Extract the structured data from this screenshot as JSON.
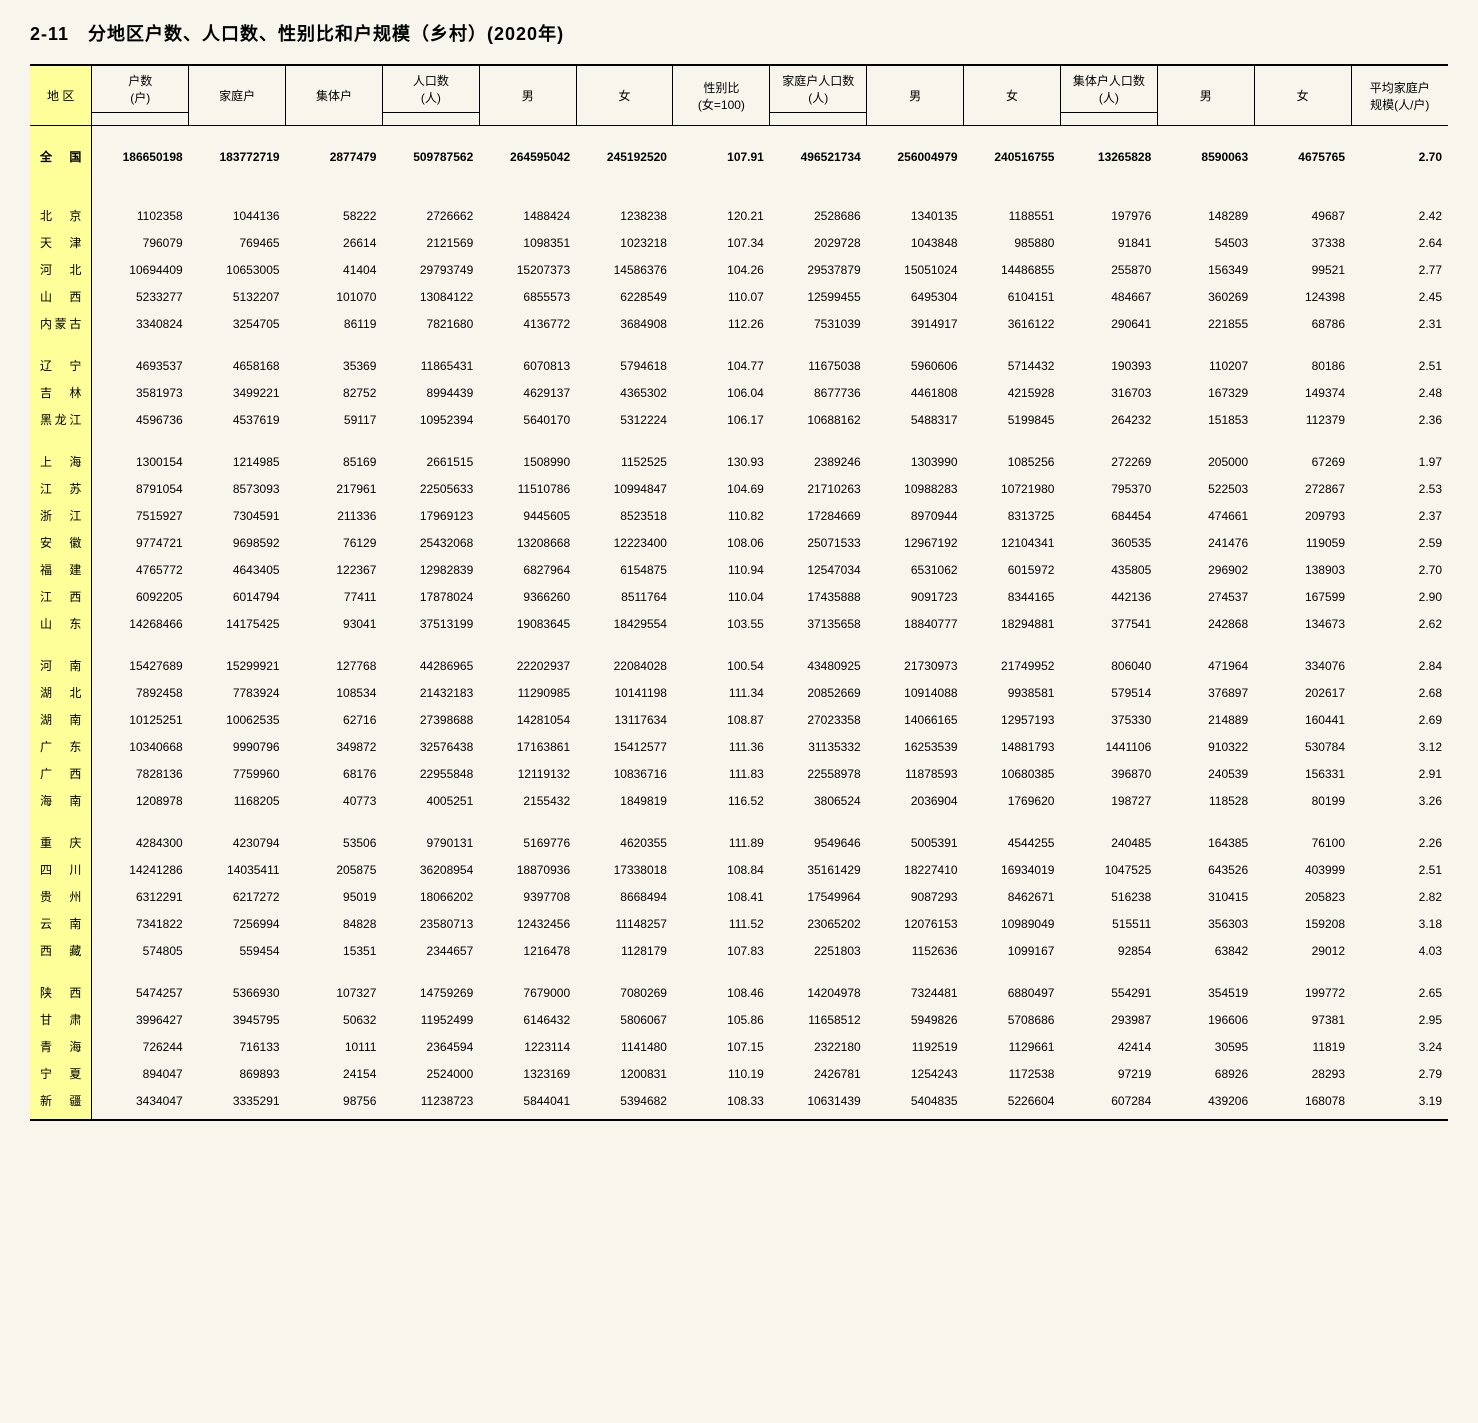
{
  "title": "2-11　分地区户数、人口数、性别比和户规模（乡村）(2020年)",
  "headers": {
    "region": "地 区",
    "households": "户数",
    "households_unit": "(户)",
    "family_hh": "家庭户",
    "collective_hh": "集体户",
    "population": "人口数",
    "population_unit": "(人)",
    "male": "男",
    "female": "女",
    "sex_ratio": "性别比",
    "sex_ratio_unit": "(女=100)",
    "family_pop": "家庭户人口数",
    "family_pop_unit": "(人)",
    "collective_pop": "集体户人口数",
    "collective_pop_unit": "(人)",
    "avg_size": "平均家庭户",
    "avg_size_unit": "规模(人/户)"
  },
  "groups": [
    {
      "national": true,
      "rows": [
        {
          "region": "全 国",
          "hh": "186650198",
          "fam_hh": "183772719",
          "col_hh": "2877479",
          "pop": "509787562",
          "m": "264595042",
          "f": "245192520",
          "ratio": "107.91",
          "fam_pop": "496521734",
          "fam_m": "256004979",
          "fam_f": "240516755",
          "col_pop": "13265828",
          "col_m": "8590063",
          "col_f": "4675765",
          "avg": "2.70"
        }
      ]
    },
    {
      "rows": [
        {
          "region": "北 京",
          "hh": "1102358",
          "fam_hh": "1044136",
          "col_hh": "58222",
          "pop": "2726662",
          "m": "1488424",
          "f": "1238238",
          "ratio": "120.21",
          "fam_pop": "2528686",
          "fam_m": "1340135",
          "fam_f": "1188551",
          "col_pop": "197976",
          "col_m": "148289",
          "col_f": "49687",
          "avg": "2.42"
        },
        {
          "region": "天 津",
          "hh": "796079",
          "fam_hh": "769465",
          "col_hh": "26614",
          "pop": "2121569",
          "m": "1098351",
          "f": "1023218",
          "ratio": "107.34",
          "fam_pop": "2029728",
          "fam_m": "1043848",
          "fam_f": "985880",
          "col_pop": "91841",
          "col_m": "54503",
          "col_f": "37338",
          "avg": "2.64"
        },
        {
          "region": "河 北",
          "hh": "10694409",
          "fam_hh": "10653005",
          "col_hh": "41404",
          "pop": "29793749",
          "m": "15207373",
          "f": "14586376",
          "ratio": "104.26",
          "fam_pop": "29537879",
          "fam_m": "15051024",
          "fam_f": "14486855",
          "col_pop": "255870",
          "col_m": "156349",
          "col_f": "99521",
          "avg": "2.77"
        },
        {
          "region": "山 西",
          "hh": "5233277",
          "fam_hh": "5132207",
          "col_hh": "101070",
          "pop": "13084122",
          "m": "6855573",
          "f": "6228549",
          "ratio": "110.07",
          "fam_pop": "12599455",
          "fam_m": "6495304",
          "fam_f": "6104151",
          "col_pop": "484667",
          "col_m": "360269",
          "col_f": "124398",
          "avg": "2.45"
        },
        {
          "region": "内蒙古",
          "hh": "3340824",
          "fam_hh": "3254705",
          "col_hh": "86119",
          "pop": "7821680",
          "m": "4136772",
          "f": "3684908",
          "ratio": "112.26",
          "fam_pop": "7531039",
          "fam_m": "3914917",
          "fam_f": "3616122",
          "col_pop": "290641",
          "col_m": "221855",
          "col_f": "68786",
          "avg": "2.31"
        }
      ]
    },
    {
      "rows": [
        {
          "region": "辽 宁",
          "hh": "4693537",
          "fam_hh": "4658168",
          "col_hh": "35369",
          "pop": "11865431",
          "m": "6070813",
          "f": "5794618",
          "ratio": "104.77",
          "fam_pop": "11675038",
          "fam_m": "5960606",
          "fam_f": "5714432",
          "col_pop": "190393",
          "col_m": "110207",
          "col_f": "80186",
          "avg": "2.51"
        },
        {
          "region": "吉 林",
          "hh": "3581973",
          "fam_hh": "3499221",
          "col_hh": "82752",
          "pop": "8994439",
          "m": "4629137",
          "f": "4365302",
          "ratio": "106.04",
          "fam_pop": "8677736",
          "fam_m": "4461808",
          "fam_f": "4215928",
          "col_pop": "316703",
          "col_m": "167329",
          "col_f": "149374",
          "avg": "2.48"
        },
        {
          "region": "黑龙江",
          "hh": "4596736",
          "fam_hh": "4537619",
          "col_hh": "59117",
          "pop": "10952394",
          "m": "5640170",
          "f": "5312224",
          "ratio": "106.17",
          "fam_pop": "10688162",
          "fam_m": "5488317",
          "fam_f": "5199845",
          "col_pop": "264232",
          "col_m": "151853",
          "col_f": "112379",
          "avg": "2.36"
        }
      ]
    },
    {
      "rows": [
        {
          "region": "上 海",
          "hh": "1300154",
          "fam_hh": "1214985",
          "col_hh": "85169",
          "pop": "2661515",
          "m": "1508990",
          "f": "1152525",
          "ratio": "130.93",
          "fam_pop": "2389246",
          "fam_m": "1303990",
          "fam_f": "1085256",
          "col_pop": "272269",
          "col_m": "205000",
          "col_f": "67269",
          "avg": "1.97"
        },
        {
          "region": "江 苏",
          "hh": "8791054",
          "fam_hh": "8573093",
          "col_hh": "217961",
          "pop": "22505633",
          "m": "11510786",
          "f": "10994847",
          "ratio": "104.69",
          "fam_pop": "21710263",
          "fam_m": "10988283",
          "fam_f": "10721980",
          "col_pop": "795370",
          "col_m": "522503",
          "col_f": "272867",
          "avg": "2.53"
        },
        {
          "region": "浙 江",
          "hh": "7515927",
          "fam_hh": "7304591",
          "col_hh": "211336",
          "pop": "17969123",
          "m": "9445605",
          "f": "8523518",
          "ratio": "110.82",
          "fam_pop": "17284669",
          "fam_m": "8970944",
          "fam_f": "8313725",
          "col_pop": "684454",
          "col_m": "474661",
          "col_f": "209793",
          "avg": "2.37"
        },
        {
          "region": "安 徽",
          "hh": "9774721",
          "fam_hh": "9698592",
          "col_hh": "76129",
          "pop": "25432068",
          "m": "13208668",
          "f": "12223400",
          "ratio": "108.06",
          "fam_pop": "25071533",
          "fam_m": "12967192",
          "fam_f": "12104341",
          "col_pop": "360535",
          "col_m": "241476",
          "col_f": "119059",
          "avg": "2.59"
        },
        {
          "region": "福 建",
          "hh": "4765772",
          "fam_hh": "4643405",
          "col_hh": "122367",
          "pop": "12982839",
          "m": "6827964",
          "f": "6154875",
          "ratio": "110.94",
          "fam_pop": "12547034",
          "fam_m": "6531062",
          "fam_f": "6015972",
          "col_pop": "435805",
          "col_m": "296902",
          "col_f": "138903",
          "avg": "2.70"
        },
        {
          "region": "江 西",
          "hh": "6092205",
          "fam_hh": "6014794",
          "col_hh": "77411",
          "pop": "17878024",
          "m": "9366260",
          "f": "8511764",
          "ratio": "110.04",
          "fam_pop": "17435888",
          "fam_m": "9091723",
          "fam_f": "8344165",
          "col_pop": "442136",
          "col_m": "274537",
          "col_f": "167599",
          "avg": "2.90"
        },
        {
          "region": "山 东",
          "hh": "14268466",
          "fam_hh": "14175425",
          "col_hh": "93041",
          "pop": "37513199",
          "m": "19083645",
          "f": "18429554",
          "ratio": "103.55",
          "fam_pop": "37135658",
          "fam_m": "18840777",
          "fam_f": "18294881",
          "col_pop": "377541",
          "col_m": "242868",
          "col_f": "134673",
          "avg": "2.62"
        }
      ]
    },
    {
      "rows": [
        {
          "region": "河 南",
          "hh": "15427689",
          "fam_hh": "15299921",
          "col_hh": "127768",
          "pop": "44286965",
          "m": "22202937",
          "f": "22084028",
          "ratio": "100.54",
          "fam_pop": "43480925",
          "fam_m": "21730973",
          "fam_f": "21749952",
          "col_pop": "806040",
          "col_m": "471964",
          "col_f": "334076",
          "avg": "2.84"
        },
        {
          "region": "湖 北",
          "hh": "7892458",
          "fam_hh": "7783924",
          "col_hh": "108534",
          "pop": "21432183",
          "m": "11290985",
          "f": "10141198",
          "ratio": "111.34",
          "fam_pop": "20852669",
          "fam_m": "10914088",
          "fam_f": "9938581",
          "col_pop": "579514",
          "col_m": "376897",
          "col_f": "202617",
          "avg": "2.68"
        },
        {
          "region": "湖 南",
          "hh": "10125251",
          "fam_hh": "10062535",
          "col_hh": "62716",
          "pop": "27398688",
          "m": "14281054",
          "f": "13117634",
          "ratio": "108.87",
          "fam_pop": "27023358",
          "fam_m": "14066165",
          "fam_f": "12957193",
          "col_pop": "375330",
          "col_m": "214889",
          "col_f": "160441",
          "avg": "2.69"
        },
        {
          "region": "广 东",
          "hh": "10340668",
          "fam_hh": "9990796",
          "col_hh": "349872",
          "pop": "32576438",
          "m": "17163861",
          "f": "15412577",
          "ratio": "111.36",
          "fam_pop": "31135332",
          "fam_m": "16253539",
          "fam_f": "14881793",
          "col_pop": "1441106",
          "col_m": "910322",
          "col_f": "530784",
          "avg": "3.12"
        },
        {
          "region": "广 西",
          "hh": "7828136",
          "fam_hh": "7759960",
          "col_hh": "68176",
          "pop": "22955848",
          "m": "12119132",
          "f": "10836716",
          "ratio": "111.83",
          "fam_pop": "22558978",
          "fam_m": "11878593",
          "fam_f": "10680385",
          "col_pop": "396870",
          "col_m": "240539",
          "col_f": "156331",
          "avg": "2.91"
        },
        {
          "region": "海 南",
          "hh": "1208978",
          "fam_hh": "1168205",
          "col_hh": "40773",
          "pop": "4005251",
          "m": "2155432",
          "f": "1849819",
          "ratio": "116.52",
          "fam_pop": "3806524",
          "fam_m": "2036904",
          "fam_f": "1769620",
          "col_pop": "198727",
          "col_m": "118528",
          "col_f": "80199",
          "avg": "3.26"
        }
      ]
    },
    {
      "rows": [
        {
          "region": "重 庆",
          "hh": "4284300",
          "fam_hh": "4230794",
          "col_hh": "53506",
          "pop": "9790131",
          "m": "5169776",
          "f": "4620355",
          "ratio": "111.89",
          "fam_pop": "9549646",
          "fam_m": "5005391",
          "fam_f": "4544255",
          "col_pop": "240485",
          "col_m": "164385",
          "col_f": "76100",
          "avg": "2.26"
        },
        {
          "region": "四 川",
          "hh": "14241286",
          "fam_hh": "14035411",
          "col_hh": "205875",
          "pop": "36208954",
          "m": "18870936",
          "f": "17338018",
          "ratio": "108.84",
          "fam_pop": "35161429",
          "fam_m": "18227410",
          "fam_f": "16934019",
          "col_pop": "1047525",
          "col_m": "643526",
          "col_f": "403999",
          "avg": "2.51"
        },
        {
          "region": "贵 州",
          "hh": "6312291",
          "fam_hh": "6217272",
          "col_hh": "95019",
          "pop": "18066202",
          "m": "9397708",
          "f": "8668494",
          "ratio": "108.41",
          "fam_pop": "17549964",
          "fam_m": "9087293",
          "fam_f": "8462671",
          "col_pop": "516238",
          "col_m": "310415",
          "col_f": "205823",
          "avg": "2.82"
        },
        {
          "region": "云 南",
          "hh": "7341822",
          "fam_hh": "7256994",
          "col_hh": "84828",
          "pop": "23580713",
          "m": "12432456",
          "f": "11148257",
          "ratio": "111.52",
          "fam_pop": "23065202",
          "fam_m": "12076153",
          "fam_f": "10989049",
          "col_pop": "515511",
          "col_m": "356303",
          "col_f": "159208",
          "avg": "3.18"
        },
        {
          "region": "西 藏",
          "hh": "574805",
          "fam_hh": "559454",
          "col_hh": "15351",
          "pop": "2344657",
          "m": "1216478",
          "f": "1128179",
          "ratio": "107.83",
          "fam_pop": "2251803",
          "fam_m": "1152636",
          "fam_f": "1099167",
          "col_pop": "92854",
          "col_m": "63842",
          "col_f": "29012",
          "avg": "4.03"
        }
      ]
    },
    {
      "rows": [
        {
          "region": "陕 西",
          "hh": "5474257",
          "fam_hh": "5366930",
          "col_hh": "107327",
          "pop": "14759269",
          "m": "7679000",
          "f": "7080269",
          "ratio": "108.46",
          "fam_pop": "14204978",
          "fam_m": "7324481",
          "fam_f": "6880497",
          "col_pop": "554291",
          "col_m": "354519",
          "col_f": "199772",
          "avg": "2.65"
        },
        {
          "region": "甘 肃",
          "hh": "3996427",
          "fam_hh": "3945795",
          "col_hh": "50632",
          "pop": "11952499",
          "m": "6146432",
          "f": "5806067",
          "ratio": "105.86",
          "fam_pop": "11658512",
          "fam_m": "5949826",
          "fam_f": "5708686",
          "col_pop": "293987",
          "col_m": "196606",
          "col_f": "97381",
          "avg": "2.95"
        },
        {
          "region": "青 海",
          "hh": "726244",
          "fam_hh": "716133",
          "col_hh": "10111",
          "pop": "2364594",
          "m": "1223114",
          "f": "1141480",
          "ratio": "107.15",
          "fam_pop": "2322180",
          "fam_m": "1192519",
          "fam_f": "1129661",
          "col_pop": "42414",
          "col_m": "30595",
          "col_f": "11819",
          "avg": "3.24"
        },
        {
          "region": "宁 夏",
          "hh": "894047",
          "fam_hh": "869893",
          "col_hh": "24154",
          "pop": "2524000",
          "m": "1323169",
          "f": "1200831",
          "ratio": "110.19",
          "fam_pop": "2426781",
          "fam_m": "1254243",
          "fam_f": "1172538",
          "col_pop": "97219",
          "col_m": "68926",
          "col_f": "28293",
          "avg": "2.79"
        },
        {
          "region": "新 疆",
          "hh": "3434047",
          "fam_hh": "3335291",
          "col_hh": "98756",
          "pop": "11238723",
          "m": "5844041",
          "f": "5394682",
          "ratio": "108.33",
          "fam_pop": "10631439",
          "fam_m": "5404835",
          "fam_f": "5226604",
          "col_pop": "607284",
          "col_m": "439206",
          "col_f": "168078",
          "avg": "3.19"
        }
      ]
    }
  ]
}
